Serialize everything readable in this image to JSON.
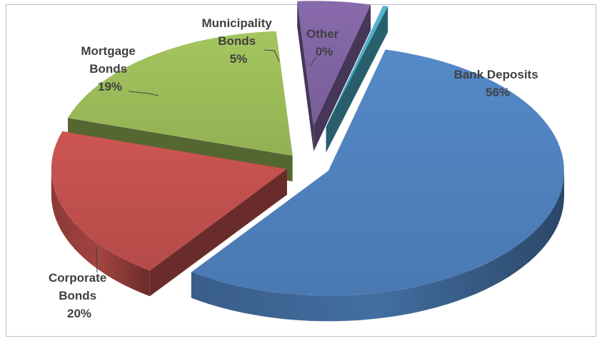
{
  "chart_data": {
    "type": "pie",
    "title": "",
    "categories": [
      "Bank Deposits",
      "Corporate Bonds",
      "Mortgage Bonds",
      "Municipality Bonds",
      "Other"
    ],
    "values": [
      56,
      20,
      19,
      5,
      0
    ],
    "labels": [
      {
        "lines": [
          "Bank Deposits",
          "56%"
        ]
      },
      {
        "lines": [
          "Corporate",
          "Bonds",
          "20%"
        ]
      },
      {
        "lines": [
          "Mortgage",
          "Bonds",
          "19%"
        ]
      },
      {
        "lines": [
          "Municipality",
          "Bonds",
          "5%"
        ]
      },
      {
        "lines": [
          "Other",
          "0%"
        ]
      }
    ],
    "colors": [
      "#4f81bd",
      "#c0504d",
      "#9bbb59",
      "#8064a2",
      "#4bacc6"
    ],
    "exploded": true,
    "three_d": true,
    "legend": "none",
    "grid": false
  }
}
